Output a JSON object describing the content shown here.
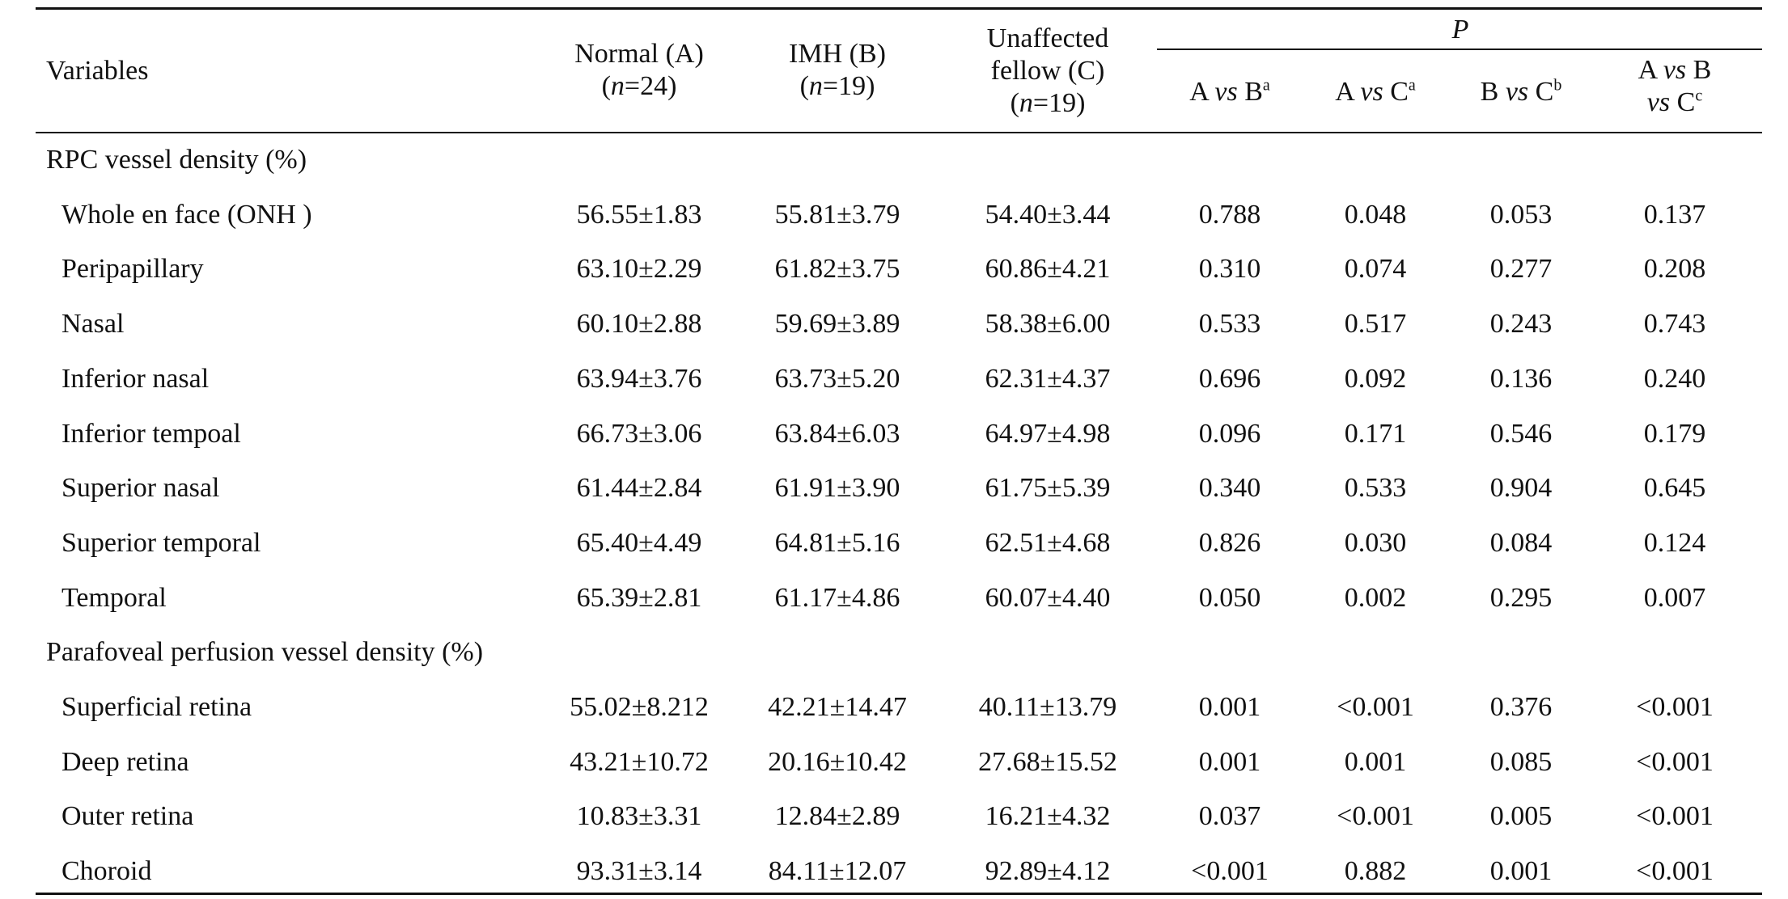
{
  "header": {
    "variables": "Variables",
    "col_a": {
      "line1": "Normal (A)",
      "n_prefix": "(",
      "n_italic": "n",
      "n_rest": "=24)"
    },
    "col_b": {
      "line1": "IMH (B)",
      "n_prefix": "(",
      "n_italic": "n",
      "n_rest": "=19)"
    },
    "col_c": {
      "line1": "Unaffected",
      "line2": "fellow (C)",
      "n_prefix": "(",
      "n_italic": "n",
      "n_rest": "=19)"
    },
    "p_label": "P",
    "p_cols": [
      {
        "left": "A ",
        "vs": "vs",
        "right": " B",
        "sup": "a"
      },
      {
        "left": "A ",
        "vs": "vs",
        "right": " C",
        "sup": "a"
      },
      {
        "left": "B ",
        "vs": "vs",
        "right": " C",
        "sup": "b"
      },
      {
        "left": "A ",
        "vs": "vs",
        "right": " B",
        "line2_vs": "vs",
        "line2_right": " C",
        "sup": "c"
      }
    ]
  },
  "sections": [
    {
      "title": "RPC vessel density (%)",
      "rows": [
        {
          "label": "Whole en face (ONH )",
          "a": "56.55±1.83",
          "b": "55.81±3.79",
          "c": "54.40±3.44",
          "p_ab": "0.788",
          "p_ac": "0.048",
          "p_bc": "0.053",
          "p_abc": "0.137"
        },
        {
          "label": "Peripapillary",
          "a": "63.10±2.29",
          "b": "61.82±3.75",
          "c": "60.86±4.21",
          "p_ab": "0.310",
          "p_ac": "0.074",
          "p_bc": "0.277",
          "p_abc": "0.208"
        },
        {
          "label": "Nasal",
          "a": "60.10±2.88",
          "b": "59.69±3.89",
          "c": "58.38±6.00",
          "p_ab": "0.533",
          "p_ac": "0.517",
          "p_bc": "0.243",
          "p_abc": "0.743"
        },
        {
          "label": "Inferior nasal",
          "a": "63.94±3.76",
          "b": "63.73±5.20",
          "c": "62.31±4.37",
          "p_ab": "0.696",
          "p_ac": "0.092",
          "p_bc": "0.136",
          "p_abc": "0.240"
        },
        {
          "label": "Inferior tempoal",
          "a": "66.73±3.06",
          "b": "63.84±6.03",
          "c": "64.97±4.98",
          "p_ab": "0.096",
          "p_ac": "0.171",
          "p_bc": "0.546",
          "p_abc": "0.179"
        },
        {
          "label": "Superior nasal",
          "a": "61.44±2.84",
          "b": "61.91±3.90",
          "c": "61.75±5.39",
          "p_ab": "0.340",
          "p_ac": "0.533",
          "p_bc": "0.904",
          "p_abc": "0.645"
        },
        {
          "label": "Superior temporal",
          "a": "65.40±4.49",
          "b": "64.81±5.16",
          "c": "62.51±4.68",
          "p_ab": "0.826",
          "p_ac": "0.030",
          "p_bc": "0.084",
          "p_abc": "0.124"
        },
        {
          "label": "Temporal",
          "a": "65.39±2.81",
          "b": "61.17±4.86",
          "c": "60.07±4.40",
          "p_ab": "0.050",
          "p_ac": "0.002",
          "p_bc": "0.295",
          "p_abc": "0.007"
        }
      ]
    },
    {
      "title": "Parafoveal perfusion vessel density (%)",
      "rows": [
        {
          "label": "Superficial retina",
          "a": "55.02±8.212",
          "b": "42.21±14.47",
          "c": "40.11±13.79",
          "p_ab": "0.001",
          "p_ac": "<0.001",
          "p_bc": "0.376",
          "p_abc": "<0.001"
        },
        {
          "label": "Deep retina",
          "a": "43.21±10.72",
          "b": "20.16±10.42",
          "c": "27.68±15.52",
          "p_ab": "0.001",
          "p_ac": "0.001",
          "p_bc": "0.085",
          "p_abc": "<0.001"
        },
        {
          "label": "Outer retina",
          "a": "10.83±3.31",
          "b": "12.84±2.89",
          "c": "16.21±4.32",
          "p_ab": "0.037",
          "p_ac": "<0.001",
          "p_bc": "0.005",
          "p_abc": "<0.001"
        },
        {
          "label": "Choroid",
          "a": "93.31±3.14",
          "b": "84.11±12.07",
          "c": "92.89±4.12",
          "p_ab": "<0.001",
          "p_ac": "0.882",
          "p_bc": "0.001",
          "p_abc": "<0.001"
        }
      ]
    }
  ]
}
